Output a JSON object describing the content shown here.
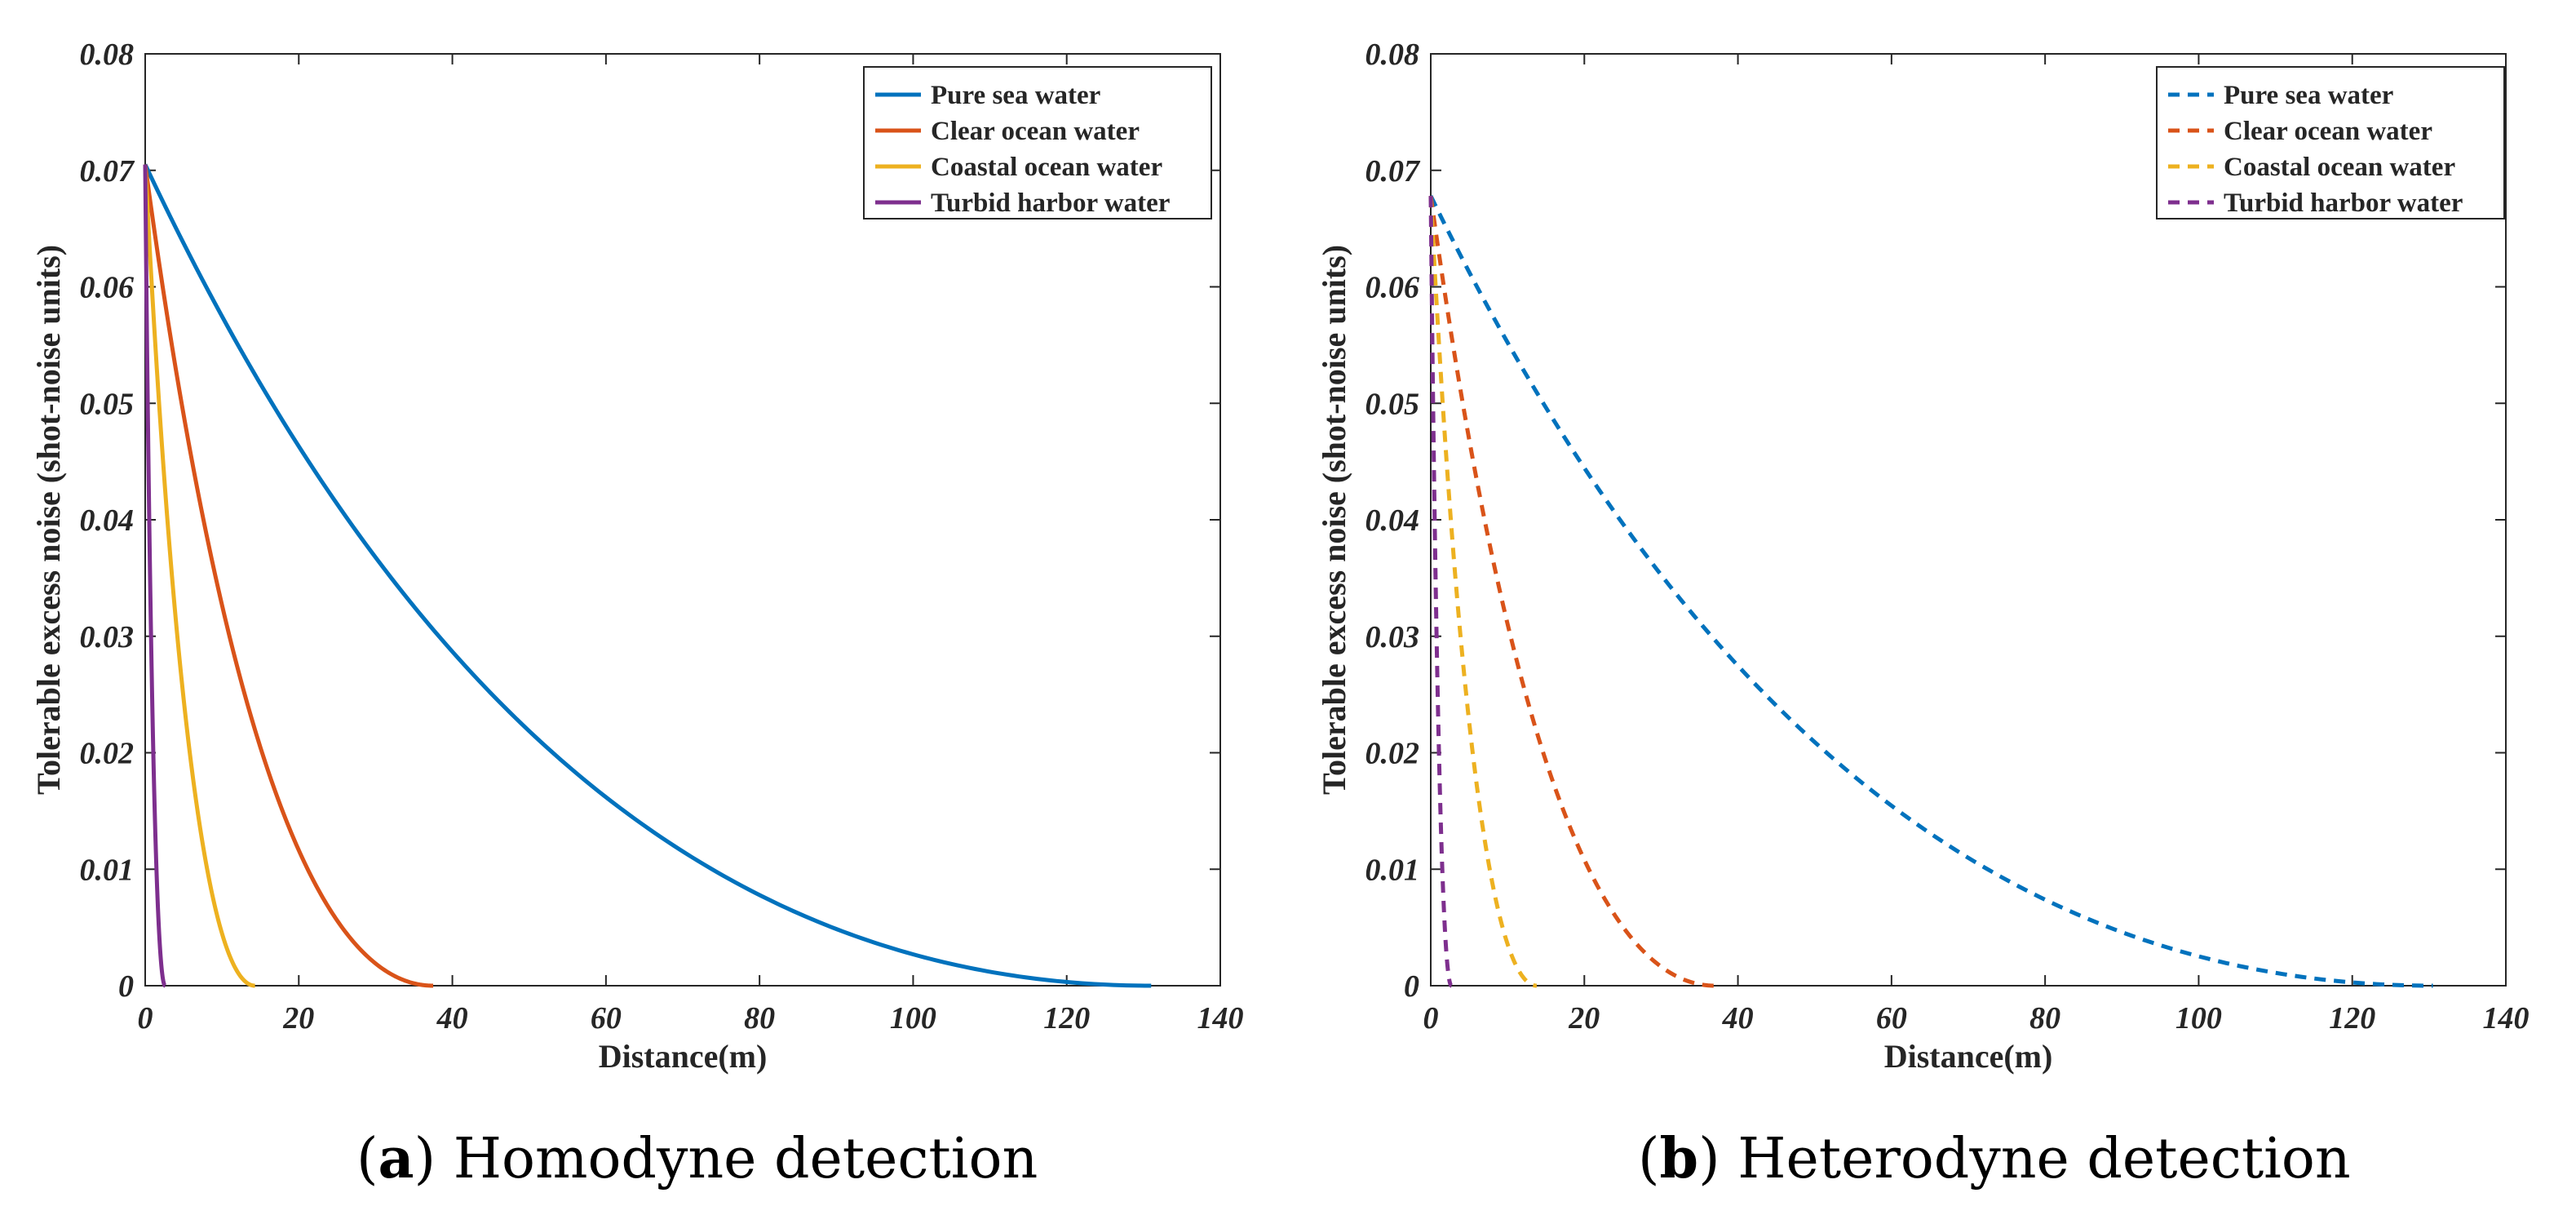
{
  "chart_data": [
    {
      "type": "line",
      "panel_letter": "a",
      "caption": "Homodyne detection",
      "line_style": "solid",
      "xlabel": "Distance(m)",
      "ylabel": "Tolerable excess noise (shot-noise units)",
      "xlim": [
        0,
        140
      ],
      "ylim": [
        0,
        0.08
      ],
      "xticks": [
        "0",
        "20",
        "40",
        "60",
        "80",
        "100",
        "120",
        "140"
      ],
      "yticks": [
        "0",
        "0.01",
        "0.02",
        "0.03",
        "0.04",
        "0.05",
        "0.06",
        "0.07",
        "0.08"
      ],
      "legend_position": "top-right",
      "series": [
        {
          "name": "Pure sea water",
          "color": "#0072BD",
          "start_value": 0.0705,
          "max_distance": 131,
          "curve_shape": 0.61
        },
        {
          "name": "Clear ocean water",
          "color": "#D95319",
          "start_value": 0.0705,
          "max_distance": 37.5,
          "curve_shape": 0.6
        },
        {
          "name": "Coastal ocean water",
          "color": "#EDB120",
          "start_value": 0.0705,
          "max_distance": 14.3,
          "curve_shape": 0.6
        },
        {
          "name": "Turbid harbor water",
          "color": "#7E2F8E",
          "start_value": 0.0705,
          "max_distance": 2.6,
          "curve_shape": 0.6
        }
      ]
    },
    {
      "type": "line",
      "panel_letter": "b",
      "caption": "Heterodyne detection",
      "line_style": "dashed",
      "xlabel": "Distance(m)",
      "ylabel": "Tolerable excess noise (shot-noise units)",
      "xlim": [
        0,
        140
      ],
      "ylim": [
        0,
        0.08
      ],
      "xticks": [
        "0",
        "20",
        "40",
        "60",
        "80",
        "100",
        "120",
        "140"
      ],
      "yticks": [
        "0",
        "0.01",
        "0.02",
        "0.03",
        "0.04",
        "0.05",
        "0.06",
        "0.07",
        "0.08"
      ],
      "legend_position": "top-right",
      "series": [
        {
          "name": "Pure sea water",
          "color": "#0072BD",
          "start_value": 0.0678,
          "max_distance": 130.5,
          "curve_shape": 0.61
        },
        {
          "name": "Clear ocean water",
          "color": "#D95319",
          "start_value": 0.0678,
          "max_distance": 37,
          "curve_shape": 0.6
        },
        {
          "name": "Coastal ocean water",
          "color": "#EDB120",
          "start_value": 0.0678,
          "max_distance": 13.8,
          "curve_shape": 0.6
        },
        {
          "name": "Turbid harbor water",
          "color": "#7E2F8E",
          "start_value": 0.0678,
          "max_distance": 2.7,
          "curve_shape": 0.6
        }
      ]
    }
  ]
}
